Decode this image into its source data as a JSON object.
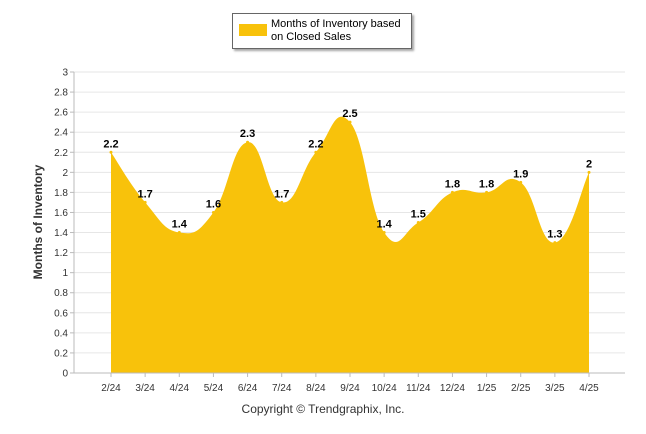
{
  "chart_data": {
    "type": "area",
    "categories": [
      "2/24",
      "3/24",
      "4/24",
      "5/24",
      "6/24",
      "7/24",
      "8/24",
      "9/24",
      "10/24",
      "11/24",
      "12/24",
      "1/25",
      "2/25",
      "3/25",
      "4/25"
    ],
    "series": [
      {
        "name": "Months of Inventory based on Closed Sales",
        "values": [
          2.2,
          1.7,
          1.4,
          1.6,
          2.3,
          1.7,
          2.2,
          2.5,
          1.4,
          1.5,
          1.8,
          1.8,
          1.9,
          1.3,
          2.0
        ]
      }
    ],
    "data_labels": [
      "2.2",
      "1.7",
      "1.4",
      "1.6",
      "2.3",
      "1.7",
      "2.2",
      "2.5",
      "1.4",
      "1.5",
      "1.8",
      "1.8",
      "1.9",
      "1.3",
      "2"
    ],
    "y_ticks": [
      "0",
      "0.2",
      "0.4",
      "0.6",
      "0.8",
      "1",
      "1.2",
      "1.4",
      "1.6",
      "1.8",
      "2",
      "2.2",
      "2.4",
      "2.6",
      "2.8",
      "3"
    ],
    "ylim": [
      0,
      3
    ],
    "ylabel": "Months of Inventory",
    "xlabel": "",
    "grid": true,
    "legend_position": "top-center",
    "colors": {
      "series_fill": "#F8C20B",
      "grid": "#e6e6e6",
      "axis": "#bbbbbb"
    }
  },
  "legend": {
    "label": "Months of Inventory based on Closed Sales"
  },
  "footer": {
    "copyright": "Copyright © Trendgraphix, Inc."
  }
}
